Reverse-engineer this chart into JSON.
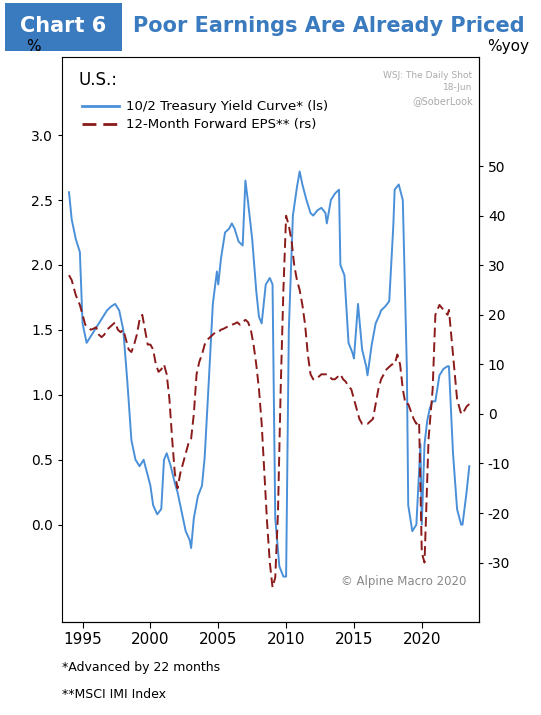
{
  "title_box": "Chart 6",
  "title_text": "Poor Earnings Are Already Priced",
  "subtitle_source": "WSJ: The Daily Shot",
  "subtitle_date": "18-Jun",
  "subtitle_handle": "@SoberLook",
  "annotation": "© Alpine Macro 2020",
  "label_us": "U.S.:",
  "legend1": "10/2 Treasury Yield Curve* (ls)",
  "legend2": "12-Month Forward EPS** (rs)",
  "footnote1": "*Advanced by 22 months",
  "footnote2": "**MSCI IMI Index",
  "ylabel_left": "%",
  "ylabel_right": "%yoy",
  "ylim_left": [
    -0.75,
    3.6
  ],
  "ylim_right": [
    -42,
    72
  ],
  "xlim": [
    1993.5,
    2024.2
  ],
  "xticks": [
    1995,
    2000,
    2005,
    2010,
    2015,
    2020
  ],
  "yticks_left": [
    0.0,
    0.5,
    1.0,
    1.5,
    2.0,
    2.5,
    3.0
  ],
  "yticks_right": [
    -30,
    -20,
    -10,
    0,
    10,
    20,
    30,
    40,
    50
  ],
  "box_color": "#3a7abf",
  "title_color": "#3a7abf",
  "line1_color": "#4a90d9",
  "line2_color": "#8b1a1a",
  "background_color": "#ffffff"
}
